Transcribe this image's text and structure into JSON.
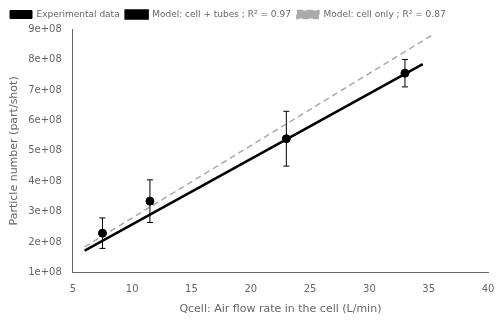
{
  "chart_data": {
    "type": "line",
    "xlabel": "Qcell: Air flow rate in the cell (L/min)",
    "ylabel": "Particle number (part/shot)",
    "xlim": [
      5,
      40
    ],
    "xticks": [
      5,
      10,
      15,
      20,
      25,
      30,
      35,
      40
    ],
    "ylim": [
      100000000,
      900000000
    ],
    "yticks": [
      {
        "value": 100000000,
        "label": "1e+08"
      },
      {
        "value": 200000000,
        "label": "2e+08"
      },
      {
        "value": 300000000,
        "label": "3e+08"
      },
      {
        "value": 400000000,
        "label": "4e+08"
      },
      {
        "value": 500000000,
        "label": "5e+08"
      },
      {
        "value": 600000000,
        "label": "6e+08"
      },
      {
        "value": 700000000,
        "label": "7e+08"
      },
      {
        "value": 800000000,
        "label": "8e+08"
      },
      {
        "value": 900000000,
        "label": "9e+08"
      }
    ],
    "grid": false,
    "legend": "upper left",
    "series": [
      {
        "name": "Experimental data",
        "type": "scatter",
        "color": "black",
        "marker": "circle",
        "x": [
          7.5,
          11.5,
          23.0,
          33.0
        ],
        "values": [
          230000000,
          335000000,
          540000000,
          755000000
        ],
        "errors": [
          50000000,
          70000000,
          90000000,
          45000000
        ]
      },
      {
        "name": "Model: cell + tubes ; R² = 0.97",
        "type": "line",
        "color": "black",
        "line_style": "solid",
        "x": [
          6.0,
          34.5
        ],
        "values": [
          173000000,
          785000000
        ]
      },
      {
        "name": "Model: cell only ; R² = 0.87",
        "type": "line",
        "color": "#aaaaaa",
        "line_style": "dashed",
        "x": [
          6.0,
          35.5
        ],
        "values": [
          185000000,
          885000000
        ]
      }
    ]
  }
}
